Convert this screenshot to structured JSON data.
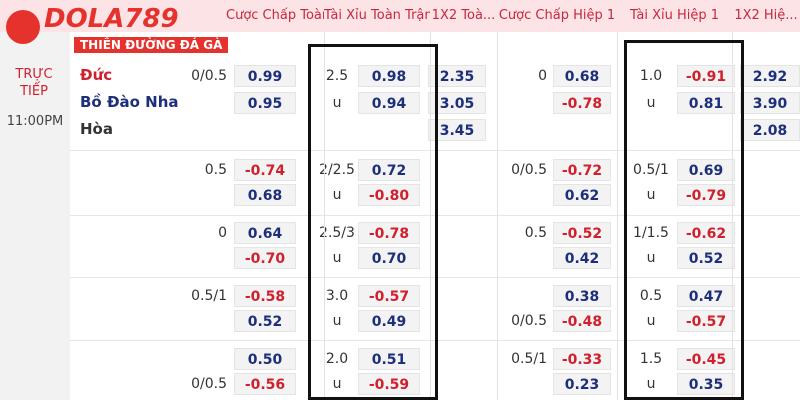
{
  "logo": {
    "brand": "DOLA789",
    "tagline": "THIÊN ĐƯỜNG ĐÁ GÀ"
  },
  "header": {
    "columns": [
      "Cược Chấp Toàn",
      "Tài Xỉu Toàn Trận",
      "1X2 Toà...",
      "Cược Chấp Hiệp 1",
      "Tài Xỉu Hiệp 1",
      "1X2 Hiệ..."
    ]
  },
  "match": {
    "status": "TRỰC TIẾP",
    "time": "11:00PM",
    "home": "Đức",
    "away": "Bồ Đào Nha",
    "draw": "Hòa"
  },
  "rows": [
    [
      "0/0.5",
      "0.99",
      "2.5",
      "0.98",
      "2.35",
      "0",
      "0.68",
      "1.0",
      "-0.91",
      "2.92"
    ],
    [
      null,
      "0.95",
      "u",
      "0.94",
      "3.05",
      null,
      "-0.78",
      "u",
      "0.81",
      "3.90"
    ],
    [
      null,
      null,
      null,
      null,
      "3.45",
      null,
      null,
      null,
      null,
      "2.08"
    ],
    [
      "0.5",
      "-0.74",
      "2/2.5",
      "0.72",
      null,
      "0/0.5",
      "-0.72",
      "0.5/1",
      "0.69",
      null
    ],
    [
      null,
      "0.68",
      "u",
      "-0.80",
      null,
      null,
      "0.62",
      "u",
      "-0.79",
      null
    ],
    [
      "0",
      "0.64",
      "2.5/3",
      "-0.78",
      null,
      "0.5",
      "-0.52",
      "1/1.5",
      "-0.62",
      null
    ],
    [
      null,
      "-0.70",
      "u",
      "0.70",
      null,
      null,
      "0.42",
      "u",
      "0.52",
      null
    ],
    [
      "0.5/1",
      "-0.58",
      "3.0",
      "-0.57",
      null,
      null,
      "0.38",
      "0.5",
      "0.47",
      null
    ],
    [
      null,
      "0.52",
      "u",
      "0.49",
      null,
      "0/0.5",
      "-0.48",
      "u",
      "-0.57",
      null
    ],
    [
      null,
      "0.50",
      "2.0",
      "0.51",
      null,
      "0.5/1",
      "-0.33",
      "1.5",
      "-0.45",
      null
    ],
    [
      "0/0.5",
      "-0.56",
      "u",
      "-0.59",
      null,
      null,
      "0.23",
      "u",
      "0.35",
      null
    ]
  ]
}
